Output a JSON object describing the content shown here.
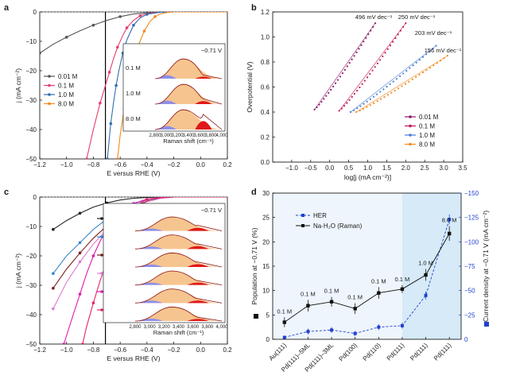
{
  "chart_data": [
    {
      "id": "a",
      "type": "line",
      "panel_label": "a",
      "xlabel": "E versus RHE (V)",
      "ylabel": "j (mA cm⁻²)",
      "xlim": [
        -1.2,
        0.2
      ],
      "ylim": [
        -50,
        0
      ],
      "xticks": [
        -1.2,
        -1.0,
        -0.8,
        -0.6,
        -0.4,
        -0.2,
        0.0,
        0.2
      ],
      "yticks": [
        0,
        -10,
        -20,
        -30,
        -40,
        -50
      ],
      "vline_x": -0.71,
      "series": [
        {
          "name": "0.01 M",
          "color": "#555555",
          "points": [
            [
              -1.2,
              -14
            ],
            [
              -1.1,
              -11
            ],
            [
              -1.0,
              -8.6
            ],
            [
              -0.9,
              -6.4
            ],
            [
              -0.8,
              -4.5
            ],
            [
              -0.7,
              -2.9
            ],
            [
              -0.6,
              -1.6
            ],
            [
              -0.5,
              -0.7
            ],
            [
              -0.4,
              -0.3
            ],
            [
              -0.3,
              -0.1
            ],
            [
              -0.2,
              0
            ],
            [
              -0.1,
              0
            ],
            [
              0.0,
              0
            ],
            [
              0.1,
              0
            ],
            [
              0.2,
              0
            ]
          ]
        },
        {
          "name": "0.1 M",
          "color": "#e83e6e",
          "points": [
            [
              -0.85,
              -50
            ],
            [
              -0.8,
              -40
            ],
            [
              -0.75,
              -31
            ],
            [
              -0.71,
              -25
            ],
            [
              -0.68,
              -20.5
            ],
            [
              -0.65,
              -16
            ],
            [
              -0.62,
              -12
            ],
            [
              -0.58,
              -8
            ],
            [
              -0.55,
              -5.4
            ],
            [
              -0.5,
              -2.8
            ],
            [
              -0.45,
              -1.3
            ],
            [
              -0.4,
              -0.5
            ],
            [
              -0.3,
              -0.1
            ],
            [
              -0.2,
              0
            ],
            [
              0.0,
              0
            ],
            [
              0.2,
              0
            ]
          ]
        },
        {
          "name": "1.0 M",
          "color": "#2f6fb3",
          "points": [
            [
              -0.695,
              -50
            ],
            [
              -0.685,
              -45
            ],
            [
              -0.67,
              -38
            ],
            [
              -0.65,
              -31
            ],
            [
              -0.63,
              -25
            ],
            [
              -0.61,
              -20
            ],
            [
              -0.58,
              -14
            ],
            [
              -0.55,
              -9.5
            ],
            [
              -0.5,
              -4.5
            ],
            [
              -0.45,
              -2
            ],
            [
              -0.4,
              -0.8
            ],
            [
              -0.3,
              -0.1
            ],
            [
              -0.2,
              0
            ],
            [
              0.0,
              0
            ],
            [
              0.2,
              0
            ]
          ]
        },
        {
          "name": "8.0 M",
          "color": "#f28a1e",
          "points": [
            [
              -0.62,
              -50
            ],
            [
              -0.6,
              -42
            ],
            [
              -0.57,
              -33
            ],
            [
              -0.54,
              -25
            ],
            [
              -0.5,
              -17
            ],
            [
              -0.46,
              -11
            ],
            [
              -0.42,
              -6.5
            ],
            [
              -0.38,
              -3.4
            ],
            [
              -0.34,
              -1.6
            ],
            [
              -0.3,
              -0.7
            ],
            [
              -0.25,
              -0.2
            ],
            [
              -0.2,
              0
            ],
            [
              0.0,
              0
            ],
            [
              0.2,
              0
            ]
          ]
        }
      ],
      "inset": {
        "title": "−0.71 V",
        "xlabel": "Raman shift (cm⁻¹)",
        "xticks": [
          2800,
          3000,
          3200,
          3400,
          3600,
          3800,
          4000
        ],
        "labels": [
          "0.1 M",
          "1.0 M",
          "8.0 M"
        ]
      }
    },
    {
      "id": "b",
      "type": "scatter",
      "panel_label": "b",
      "xlabel": "log[j (mA cm⁻²)]",
      "ylabel": "Overpotential (V)",
      "xlim": [
        -1.5,
        3.5
      ],
      "ylim": [
        0,
        1.2
      ],
      "xticks": [
        -1.0,
        -0.5,
        0.0,
        0.5,
        1.0,
        1.5,
        2.0,
        2.5,
        3.0,
        3.5
      ],
      "yticks": [
        0,
        0.2,
        0.4,
        0.6,
        0.8,
        1.0,
        1.2
      ],
      "series": [
        {
          "name": "0.01 M",
          "color": "#8b1a6b",
          "start": [
            -0.4,
            0.42
          ],
          "end": [
            1.2,
            1.11
          ]
        },
        {
          "name": "0.1 M",
          "color": "#c2185b",
          "start": [
            0.25,
            0.41
          ],
          "end": [
            2.0,
            1.11
          ]
        },
        {
          "name": "1.0 M",
          "color": "#4a7fd4",
          "start": [
            0.55,
            0.4
          ],
          "end": [
            2.8,
            0.93
          ]
        },
        {
          "name": "8.0 M",
          "color": "#f08a1e",
          "start": [
            0.7,
            0.4
          ],
          "end": [
            3.1,
            0.85
          ]
        }
      ],
      "tafel_labels": [
        "496 mV dec⁻¹",
        "250 mV dec⁻¹",
        "203 mV dec⁻¹",
        "156 mV dec⁻¹"
      ]
    },
    {
      "id": "c",
      "type": "line",
      "panel_label": "c",
      "xlabel": "E versus RHE (V)",
      "ylabel": "j (mA cm⁻²)",
      "xlim": [
        -1.2,
        0.2
      ],
      "ylim": [
        -50,
        0
      ],
      "xticks": [
        -1.2,
        -1.0,
        -0.8,
        -0.6,
        -0.4,
        -0.2,
        0.0,
        0.2
      ],
      "yticks": [
        0,
        -10,
        -20,
        -30,
        -40,
        -50
      ],
      "vline_x": -0.71,
      "series": [
        {
          "name": "Au(111)",
          "color": "#222222",
          "points": [
            [
              -1.1,
              -11
            ],
            [
              -1.0,
              -8
            ],
            [
              -0.9,
              -5.5
            ],
            [
              -0.8,
              -3.4
            ],
            [
              -0.7,
              -2
            ],
            [
              -0.6,
              -1
            ],
            [
              -0.5,
              -0.4
            ],
            [
              -0.4,
              -0.15
            ],
            [
              -0.3,
              0
            ],
            [
              -0.2,
              0
            ],
            [
              0.0,
              0
            ],
            [
              0.2,
              0
            ]
          ]
        },
        {
          "name": "Pd(100)",
          "color": "#3a86d0",
          "points": [
            [
              -1.1,
              -26
            ],
            [
              -1.0,
              -20
            ],
            [
              -0.9,
              -15.5
            ],
            [
              -0.8,
              -11
            ],
            [
              -0.7,
              -7.5
            ],
            [
              -0.6,
              -4.5
            ],
            [
              -0.5,
              -2.2
            ],
            [
              -0.4,
              -0.9
            ],
            [
              -0.3,
              -0.3
            ],
            [
              -0.2,
              0
            ],
            [
              0.0,
              0
            ],
            [
              0.2,
              0
            ]
          ]
        },
        {
          "name": "Pd(111)–5ML",
          "color": "#7a1f1f",
          "points": [
            [
              -1.1,
              -31
            ],
            [
              -1.0,
              -24.5
            ],
            [
              -0.9,
              -19
            ],
            [
              -0.8,
              -14
            ],
            [
              -0.7,
              -9.8
            ],
            [
              -0.6,
              -6.2
            ],
            [
              -0.5,
              -3.3
            ],
            [
              -0.4,
              -1.4
            ],
            [
              -0.3,
              -0.4
            ],
            [
              -0.2,
              0
            ],
            [
              0.0,
              0
            ],
            [
              0.2,
              0
            ]
          ]
        },
        {
          "name": "Pd(111)–3ML",
          "color": "#e07ad0",
          "points": [
            [
              -1.1,
              -38
            ],
            [
              -1.0,
              -29
            ],
            [
              -0.9,
              -22
            ],
            [
              -0.8,
              -16
            ],
            [
              -0.7,
              -11
            ],
            [
              -0.6,
              -7
            ],
            [
              -0.5,
              -3.8
            ],
            [
              -0.4,
              -1.6
            ],
            [
              -0.3,
              -0.5
            ],
            [
              -0.2,
              0
            ],
            [
              0.0,
              0
            ],
            [
              0.2,
              0
            ]
          ]
        },
        {
          "name": "Pd(110)",
          "color": "#e01ab0",
          "points": [
            [
              -1.02,
              -50
            ],
            [
              -0.95,
              -40
            ],
            [
              -0.9,
              -33
            ],
            [
              -0.85,
              -26
            ],
            [
              -0.8,
              -20
            ],
            [
              -0.75,
              -15
            ],
            [
              -0.7,
              -11
            ],
            [
              -0.6,
              -5.5
            ],
            [
              -0.5,
              -2.2
            ],
            [
              -0.4,
              -0.7
            ],
            [
              -0.3,
              -0.2
            ],
            [
              -0.2,
              0
            ],
            [
              0.0,
              0
            ],
            [
              0.2,
              0
            ]
          ]
        },
        {
          "name": "Pd(111)",
          "color": "#e8236a",
          "points": [
            [
              -0.88,
              -50
            ],
            [
              -0.85,
              -44
            ],
            [
              -0.8,
              -36
            ],
            [
              -0.75,
              -28.5
            ],
            [
              -0.7,
              -22
            ],
            [
              -0.65,
              -16
            ],
            [
              -0.6,
              -11
            ],
            [
              -0.55,
              -7
            ],
            [
              -0.5,
              -4
            ],
            [
              -0.45,
              -2
            ],
            [
              -0.4,
              -0.8
            ],
            [
              -0.3,
              -0.2
            ],
            [
              -0.2,
              0
            ],
            [
              0.0,
              0
            ],
            [
              0.2,
              0
            ]
          ]
        }
      ],
      "inset": {
        "title": "−0.71 V",
        "xlabel": "Raman shift (cm⁻¹)",
        "xticks": [
          2800,
          3000,
          3200,
          3400,
          3600,
          3800,
          4000
        ]
      }
    },
    {
      "id": "d",
      "type": "line",
      "panel_label": "d",
      "ylabel": "Population at −0.71 V (%)",
      "y2label": "Current density at −0.71 V (mA cm⁻²)",
      "categories": [
        "Au(111)",
        "Pd(111)–5ML",
        "Pd(111)–3ML",
        "Pd(100)",
        "Pd(110)",
        "Pd(111)",
        "Pd(111)",
        "Pd(111)"
      ],
      "concentration_labels": [
        "0.1 M",
        "0.1 M",
        "0.1 M",
        "0.1 M",
        "0.1 M",
        "0.1 M",
        "1.0 M",
        "8.0 M"
      ],
      "ylim": [
        0,
        30
      ],
      "yticks": [
        0,
        5,
        10,
        15,
        20,
        25,
        30
      ],
      "y2lim": [
        0,
        -150
      ],
      "y2ticks": [
        0,
        -25,
        -50,
        -75,
        -100,
        -125,
        -150
      ],
      "series": [
        {
          "name": "HER",
          "color": "#1f3fd0",
          "axis": "right",
          "values": [
            -2,
            -8,
            -9.5,
            -6,
            -12.5,
            -14,
            -45,
            -123
          ],
          "errors": [
            1.5,
            3,
            3,
            2.5,
            3,
            3,
            4,
            5
          ]
        },
        {
          "name": "Na·H₂O (Raman)",
          "color": "#111111",
          "axis": "left",
          "values": [
            3.5,
            6.9,
            7.7,
            6.3,
            9.5,
            10.3,
            13.2,
            21.7
          ],
          "errors": [
            1,
            1.2,
            1,
            1.1,
            1.2,
            0.8,
            1.2,
            1.5
          ]
        }
      ]
    }
  ]
}
